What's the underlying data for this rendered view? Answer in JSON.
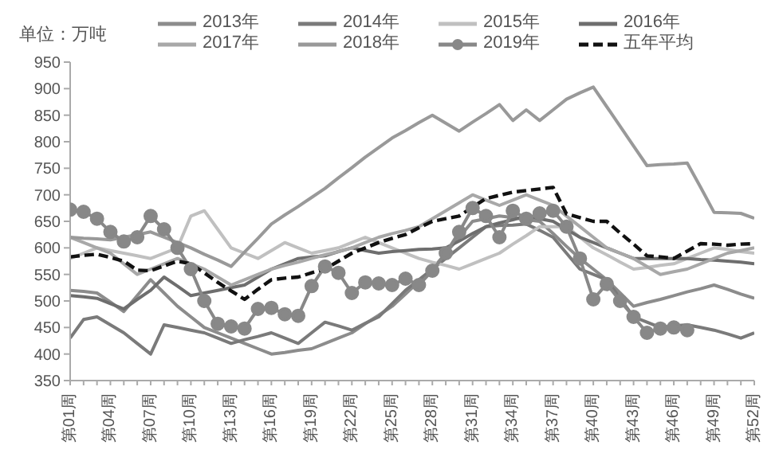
{
  "chart_data": {
    "type": "line",
    "ylabel": "单位：万吨",
    "ylim": [
      350,
      950
    ],
    "yticks": [
      350,
      400,
      450,
      500,
      550,
      600,
      650,
      700,
      750,
      800,
      850,
      900,
      950
    ],
    "categories": [
      "第01周",
      null,
      null,
      "第04周",
      null,
      null,
      "第07周",
      null,
      null,
      "第10周",
      null,
      null,
      "第13周",
      null,
      null,
      "第16周",
      null,
      null,
      "第19周",
      null,
      null,
      "第22周",
      null,
      null,
      "第25周",
      null,
      null,
      "第28周",
      null,
      null,
      "第31周",
      null,
      null,
      "第34周",
      null,
      null,
      "第37周",
      null,
      null,
      "第40周",
      null,
      null,
      "第43周",
      null,
      null,
      "第46周",
      null,
      null,
      "第49周",
      null,
      null,
      "第52周"
    ],
    "legend": "top",
    "marker": "none",
    "line_style": "solid",
    "series": [
      {
        "name": "2013年",
        "color": "#8c8c8c",
        "values": [
          520,
          518,
          515,
          498,
          480,
          510,
          540,
          515,
          490,
          470,
          450,
          440,
          430,
          420,
          410,
          400,
          403,
          407,
          410,
          420,
          430,
          440,
          457,
          473,
          490,
          513,
          537,
          560,
          590,
          620,
          650,
          655,
          660,
          657,
          653,
          650,
          627,
          603,
          580,
          560,
          540,
          515,
          490,
          497,
          503,
          510,
          517,
          523,
          530,
          522,
          513,
          505
        ]
      },
      {
        "name": "2014年",
        "color": "#7a7a7a",
        "values": [
          430,
          465,
          470,
          455,
          440,
          420,
          400,
          455,
          450,
          445,
          440,
          430,
          420,
          427,
          433,
          440,
          430,
          420,
          440,
          460,
          453,
          445,
          458,
          470,
          495,
          520,
          540,
          560,
          580,
          600,
          620,
          640,
          642,
          643,
          645,
          633,
          620,
          590,
          560,
          550,
          540,
          505,
          470,
          460,
          450,
          453,
          455,
          450,
          445,
          438,
          430,
          440
        ]
      },
      {
        "name": "2015年",
        "color": "#c0c0c0",
        "values": [
          580,
          590,
          600,
          595,
          590,
          585,
          580,
          590,
          600,
          660,
          670,
          635,
          600,
          590,
          580,
          595,
          610,
          600,
          590,
          595,
          600,
          610,
          620,
          610,
          600,
          590,
          580,
          573,
          567,
          560,
          570,
          580,
          590,
          607,
          623,
          640,
          640,
          640,
          620,
          600,
          587,
          573,
          560,
          563,
          567,
          570,
          580,
          590,
          600,
          597,
          593,
          590
        ]
      },
      {
        "name": "2016年",
        "color": "#6e6e6e",
        "values": [
          510,
          508,
          505,
          495,
          485,
          503,
          520,
          545,
          528,
          510,
          515,
          520,
          525,
          530,
          545,
          560,
          570,
          580,
          583,
          585,
          593,
          600,
          595,
          590,
          593,
          595,
          597,
          598,
          600,
          613,
          627,
          640,
          647,
          653,
          660,
          655,
          650,
          635,
          620,
          610,
          600,
          590,
          580,
          580,
          580,
          580,
          580,
          578,
          577,
          575,
          573,
          570
        ]
      },
      {
        "name": "2017年",
        "color": "#a8a8a8",
        "values": [
          620,
          610,
          600,
          590,
          570,
          550,
          560,
          570,
          580,
          570,
          560,
          545,
          530,
          540,
          550,
          560,
          567,
          573,
          580,
          587,
          593,
          600,
          610,
          620,
          627,
          633,
          640,
          655,
          670,
          685,
          700,
          690,
          680,
          690,
          700,
          690,
          680,
          660,
          640,
          620,
          600,
          590,
          580,
          565,
          550,
          555,
          560,
          570,
          580,
          590,
          595,
          600
        ]
      },
      {
        "name": "2018年",
        "color": "#999999",
        "values": [
          620,
          618,
          617,
          615,
          620,
          625,
          630,
          620,
          610,
          600,
          588,
          577,
          565,
          592,
          618,
          645,
          662,
          678,
          695,
          712,
          732,
          751,
          771,
          789,
          807,
          821,
          836,
          850,
          835,
          820,
          837,
          853,
          870,
          840,
          860,
          840,
          860,
          880,
          892,
          903,
          866,
          829,
          792,
          755,
          757,
          758,
          760,
          714,
          667,
          666,
          665,
          656
        ]
      },
      {
        "name": "2019年",
        "color": "#888888",
        "marker": "circle",
        "values": [
          672,
          668,
          655,
          630,
          612,
          620,
          660,
          635,
          600,
          560,
          500,
          457,
          452,
          448,
          485,
          487,
          475,
          472,
          528,
          565,
          553,
          515,
          535,
          533,
          530,
          542,
          530,
          557,
          590,
          630,
          675,
          660,
          620,
          670,
          655,
          665,
          670,
          640,
          580,
          503,
          532,
          500,
          470,
          440,
          448,
          450,
          445,
          null,
          null,
          null,
          null,
          null
        ]
      },
      {
        "name": "五年平均",
        "color": "#111111",
        "line_style": "dashed",
        "values": [
          583,
          586,
          588,
          582,
          575,
          558,
          557,
          566,
          575,
          570,
          553,
          535,
          519,
          503,
          522,
          540,
          543,
          545,
          553,
          560,
          575,
          590,
          600,
          610,
          618,
          625,
          638,
          650,
          655,
          660,
          677,
          693,
          699,
          705,
          708,
          711,
          714,
          664,
          657,
          650,
          650,
          628,
          607,
          585,
          583,
          580,
          594,
          608,
          607,
          605,
          607,
          608
        ]
      }
    ]
  }
}
